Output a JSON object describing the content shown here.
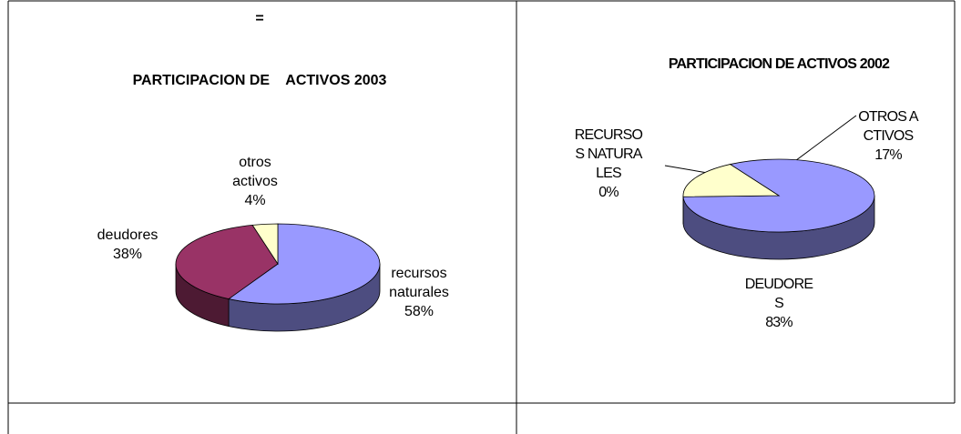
{
  "marker": "=",
  "chart_data": [
    {
      "type": "pie3d",
      "title": "PARTICIPACION DE    ACTIVOS 2003",
      "categories": [
        "recursos naturales",
        "deudores",
        "otros activos"
      ],
      "values": [
        58,
        38,
        4
      ],
      "value_labels": [
        "58%",
        "38%",
        "4%"
      ],
      "colors": [
        "#9999ff",
        "#993366",
        "#ffffcc"
      ]
    },
    {
      "type": "pie3d",
      "title": "PARTICIPACION DE ACTIVOS 2002",
      "categories": [
        "RECURSOS NATURALES",
        "DEUDORES",
        "OTROS ACTIVOS"
      ],
      "values": [
        0,
        83,
        17
      ],
      "value_labels": [
        "0%",
        "83%",
        "17%"
      ],
      "colors": [
        "#9999ff",
        "#9999ff",
        "#ffffcc"
      ]
    }
  ]
}
